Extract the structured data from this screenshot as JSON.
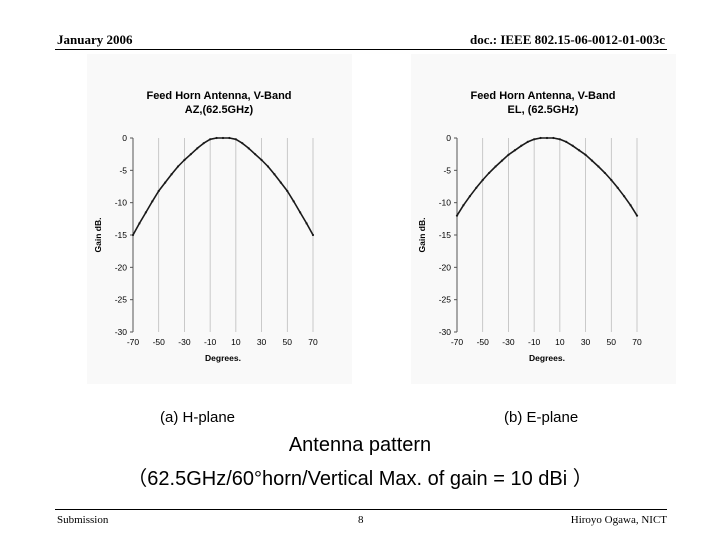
{
  "header": {
    "date": "January 2006",
    "doc": "doc.: IEEE 802.15-06-0012-01-003c"
  },
  "footer": {
    "left": "Submission",
    "page": "8",
    "author": "Hiroyo Ogawa, NICT"
  },
  "figure_labels": {
    "a": "(a) H-plane",
    "b": "(b) E-plane"
  },
  "caption": {
    "line1": "Antenna pattern",
    "line2": "（62.5GHz/60°horn/Vertical Max. of gain = 10 dBi ）"
  },
  "chart_data": [
    {
      "type": "line",
      "title": "Feed Horn Antenna, V-Band",
      "subtitle": "AZ,(62.5GHz)",
      "xlabel": "Degrees.",
      "ylabel": "Gain dB.",
      "xlim": [
        -70,
        70
      ],
      "ylim": [
        -30,
        0
      ],
      "xticks": [
        -70,
        -50,
        -30,
        -10,
        10,
        30,
        50,
        70
      ],
      "yticks": [
        0,
        -5,
        -10,
        -15,
        -20,
        -25,
        -30
      ],
      "grid": true,
      "line_color": "#1a1a1a",
      "x": [
        -70,
        -65,
        -60,
        -55,
        -50,
        -45,
        -40,
        -35,
        -30,
        -25,
        -20,
        -15,
        -10,
        -5,
        0,
        5,
        10,
        15,
        20,
        25,
        30,
        35,
        40,
        45,
        50,
        55,
        60,
        65,
        70
      ],
      "y": [
        -15,
        -13.2,
        -11.5,
        -9.8,
        -8.2,
        -6.9,
        -5.6,
        -4.4,
        -3.4,
        -2.5,
        -1.6,
        -0.8,
        -0.2,
        0,
        0,
        0,
        -0.2,
        -0.8,
        -1.6,
        -2.5,
        -3.4,
        -4.4,
        -5.6,
        -6.9,
        -8.2,
        -9.8,
        -11.5,
        -13.2,
        -15
      ]
    },
    {
      "type": "line",
      "title": "Feed Horn Antenna, V-Band",
      "subtitle": "EL, (62.5GHz)",
      "xlabel": "Degrees.",
      "ylabel": "Gain dB.",
      "xlim": [
        -70,
        70
      ],
      "ylim": [
        -30,
        0
      ],
      "xticks": [
        -70,
        -50,
        -30,
        -10,
        10,
        30,
        50,
        70
      ],
      "yticks": [
        0,
        -5,
        -10,
        -15,
        -20,
        -25,
        -30
      ],
      "grid": true,
      "line_color": "#1a1a1a",
      "x": [
        -70,
        -65,
        -60,
        -55,
        -50,
        -45,
        -40,
        -35,
        -30,
        -25,
        -20,
        -15,
        -10,
        -5,
        0,
        5,
        10,
        15,
        20,
        25,
        30,
        35,
        40,
        45,
        50,
        55,
        60,
        65,
        70
      ],
      "y": [
        -12,
        -10.4,
        -9.0,
        -7.7,
        -6.5,
        -5.4,
        -4.4,
        -3.5,
        -2.6,
        -1.9,
        -1.2,
        -0.6,
        -0.2,
        0,
        0,
        0,
        -0.2,
        -0.6,
        -1.2,
        -1.9,
        -2.6,
        -3.5,
        -4.4,
        -5.4,
        -6.5,
        -7.7,
        -9.0,
        -10.4,
        -12
      ]
    }
  ]
}
